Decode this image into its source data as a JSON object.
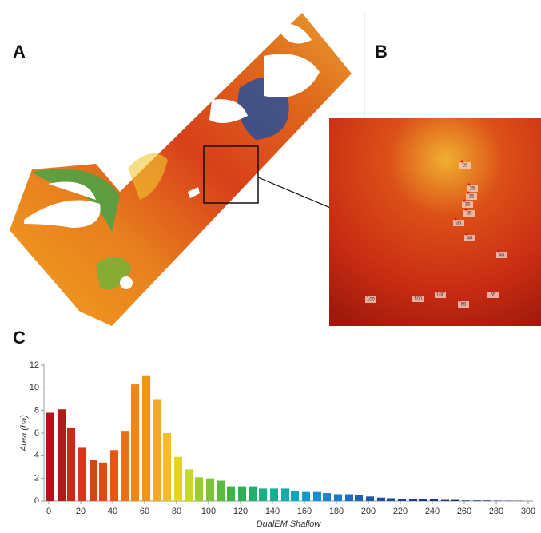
{
  "panel_labels": [
    "A",
    "B",
    "C"
  ],
  "inset_labels": [
    "20",
    "25",
    "35",
    "35",
    "35",
    "35",
    "40",
    "45",
    "100",
    "100",
    "100",
    "65",
    "65"
  ],
  "chart_data": {
    "type": "bar",
    "xlabel": "DualEM Shallow",
    "ylabel": "Area (ha)",
    "x": [
      1,
      8,
      14,
      21,
      28,
      34,
      41,
      48,
      54,
      61,
      68,
      74,
      81,
      88,
      94,
      101,
      108,
      114,
      121,
      128,
      134,
      141,
      148,
      154,
      161,
      168,
      174,
      181,
      188,
      194,
      201,
      208,
      214,
      221,
      228,
      234,
      241,
      248,
      254,
      261,
      268,
      274,
      281,
      288,
      294
    ],
    "values": [
      7.8,
      8.1,
      6.5,
      4.7,
      3.6,
      3.4,
      4.5,
      6.2,
      10.3,
      11.1,
      9.0,
      6.0,
      3.9,
      2.8,
      2.1,
      2.0,
      1.8,
      1.3,
      1.3,
      1.3,
      1.1,
      1.1,
      1.1,
      0.9,
      0.8,
      0.8,
      0.7,
      0.6,
      0.6,
      0.5,
      0.4,
      0.3,
      0.25,
      0.2,
      0.2,
      0.15,
      0.15,
      0.1,
      0.1,
      0.05,
      0.05,
      0.05,
      0.03,
      0.03,
      0.02
    ],
    "colors": [
      "#b3141b",
      "#b8161a",
      "#c62a1a",
      "#d23b17",
      "#d94416",
      "#dc4a15",
      "#e05a14",
      "#e87018",
      "#ee861c",
      "#f09420",
      "#f4a82a",
      "#f5bb2c",
      "#e8d22a",
      "#c9d62e",
      "#9ccc34",
      "#7dc43a",
      "#5cbb3e",
      "#3db444",
      "#2fb056",
      "#25ae6a",
      "#1ead80",
      "#18ac97",
      "#15a9ab",
      "#14a3bd",
      "#159acb",
      "#168fd0",
      "#1983cf",
      "#1b77c9",
      "#1c6cc0",
      "#1d62b6",
      "#1d59ab",
      "#1d51a0",
      "#1c4a95",
      "#1b448b",
      "#1a3f83",
      "#193b7c",
      "#183776",
      "#173470",
      "#16316b",
      "#152f67",
      "#152d63",
      "#142b60",
      "#142a5d",
      "#13295b",
      "#132859"
    ],
    "xlim": [
      -3,
      303
    ],
    "ylim": [
      0,
      12
    ],
    "xticks": [
      0,
      20,
      40,
      60,
      80,
      100,
      120,
      140,
      160,
      180,
      200,
      220,
      240,
      260,
      280,
      300
    ],
    "yticks": [
      0,
      2,
      4,
      6,
      8,
      10,
      12
    ],
    "grid": false
  }
}
